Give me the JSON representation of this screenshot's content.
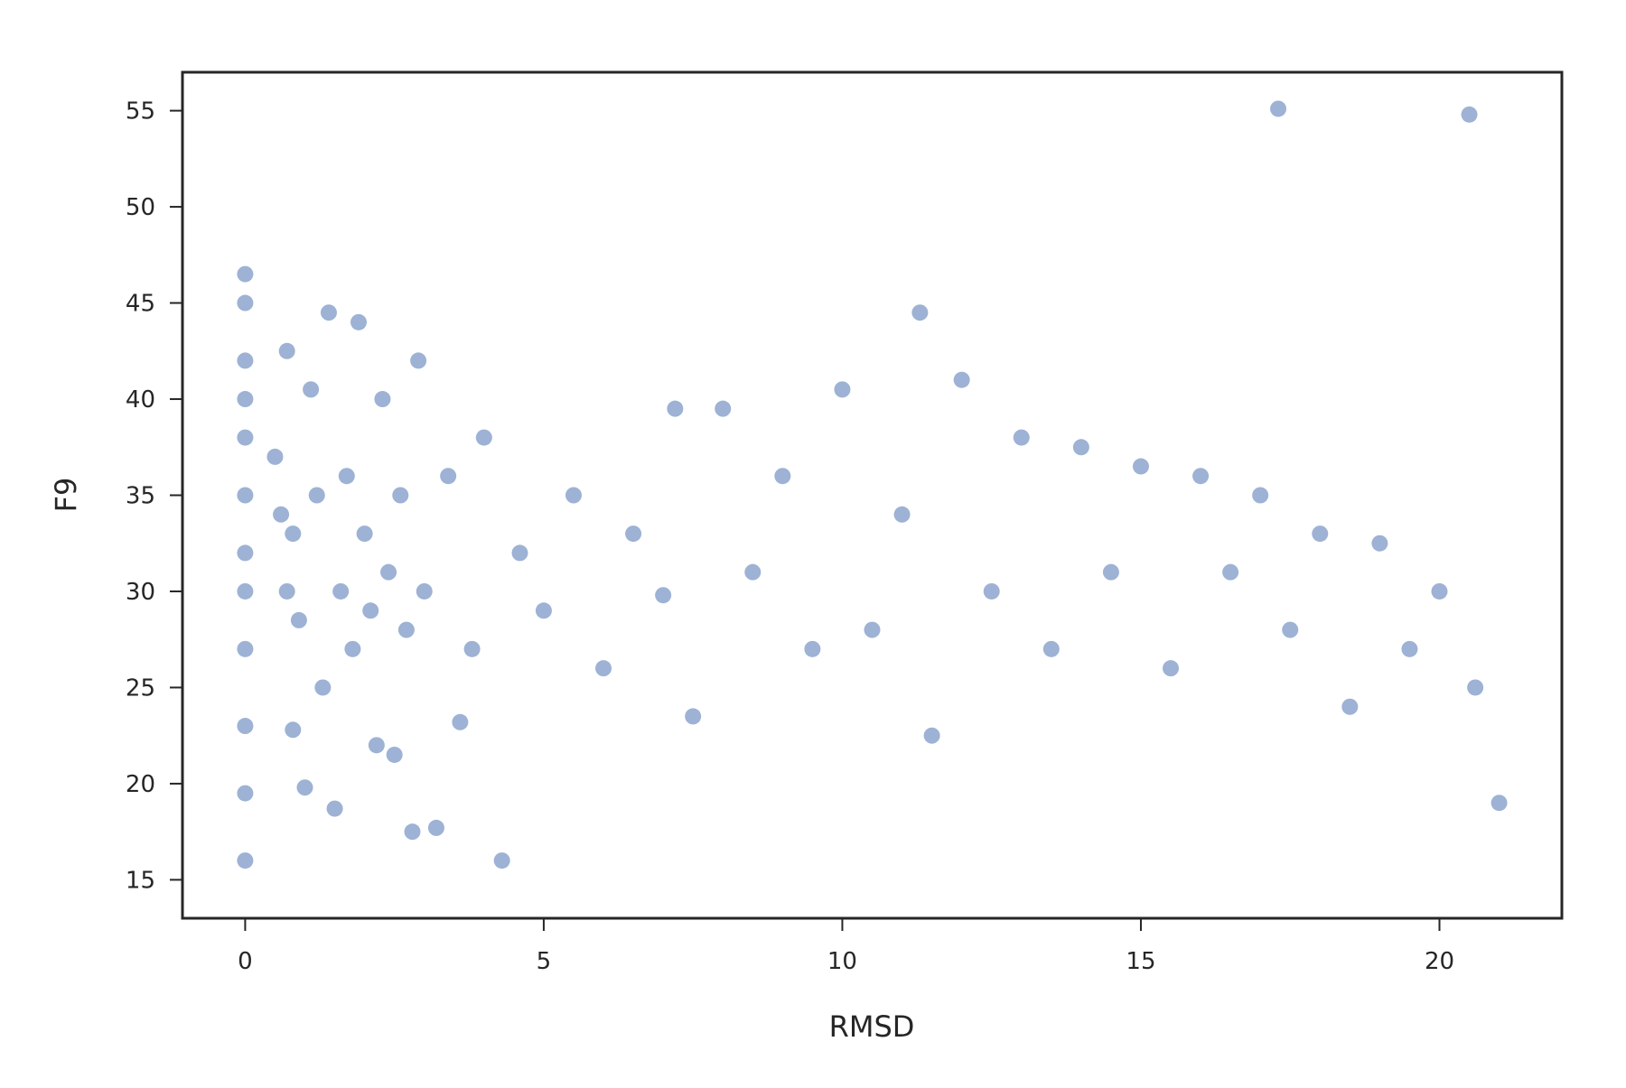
{
  "chart_data": {
    "type": "scatter",
    "title": "",
    "xlabel": "RMSD",
    "ylabel": "F9",
    "xlim": [
      -1.05,
      22.05
    ],
    "ylim": [
      13.0,
      57.0
    ],
    "xticks": [
      0,
      5,
      10,
      15,
      20
    ],
    "yticks": [
      15,
      20,
      25,
      30,
      35,
      40,
      45,
      50,
      55
    ],
    "xtick_labels": [
      "0",
      "5",
      "10",
      "15",
      "20"
    ],
    "ytick_labels": [
      "15",
      "20",
      "25",
      "30",
      "35",
      "40",
      "45",
      "50",
      "55"
    ],
    "grid": false,
    "legend": "none",
    "marker_color": "#4c72b0",
    "marker_alpha": 0.1,
    "series": [
      {
        "x": [
          0.0,
          0.0,
          0.0,
          0.0,
          0.0,
          0.0,
          0.0,
          0.0,
          0.0,
          0.0,
          0.0,
          0.0,
          0.5,
          0.6,
          0.7,
          0.7,
          0.8,
          0.8,
          0.9,
          1.0,
          1.1,
          1.2,
          1.3,
          1.4,
          1.5,
          1.6,
          1.7,
          1.8,
          1.9,
          2.0,
          2.1,
          2.2,
          2.3,
          2.4,
          2.5,
          2.6,
          2.7,
          2.8,
          2.9,
          3.0,
          3.2,
          3.4,
          3.6,
          3.8,
          4.0,
          4.3,
          4.6,
          5.0,
          5.5,
          6.0,
          6.5,
          7.0,
          7.2,
          7.5,
          8.0,
          8.5,
          9.0,
          9.5,
          10.0,
          10.5,
          11.0,
          11.3,
          11.5,
          12.0,
          12.5,
          13.0,
          13.5,
          14.0,
          14.5,
          15.0,
          15.5,
          16.0,
          16.5,
          17.0,
          17.3,
          17.5,
          18.0,
          18.5,
          19.0,
          19.5,
          20.0,
          20.5,
          20.6,
          21.0
        ],
        "y": [
          46.5,
          45.0,
          42.0,
          40.0,
          38.0,
          35.0,
          32.0,
          30.0,
          27.0,
          23.0,
          19.5,
          16.0,
          37.0,
          34.0,
          42.5,
          30.0,
          22.8,
          33.0,
          28.5,
          19.8,
          40.5,
          35.0,
          25.0,
          44.5,
          18.7,
          30.0,
          36.0,
          27.0,
          44.0,
          33.0,
          29.0,
          22.0,
          40.0,
          31.0,
          21.5,
          35.0,
          28.0,
          17.5,
          42.0,
          30.0,
          17.7,
          36.0,
          23.2,
          27.0,
          38.0,
          16.0,
          32.0,
          29.0,
          35.0,
          26.0,
          33.0,
          29.8,
          39.5,
          23.5,
          39.5,
          31.0,
          36.0,
          27.0,
          40.5,
          28.0,
          34.0,
          44.5,
          22.5,
          41.0,
          30.0,
          38.0,
          27.0,
          37.5,
          31.0,
          36.5,
          26.0,
          36.0,
          31.0,
          35.0,
          55.1,
          28.0,
          33.0,
          24.0,
          32.5,
          27.0,
          30.0,
          54.8,
          25.0,
          19.0
        ]
      }
    ]
  }
}
